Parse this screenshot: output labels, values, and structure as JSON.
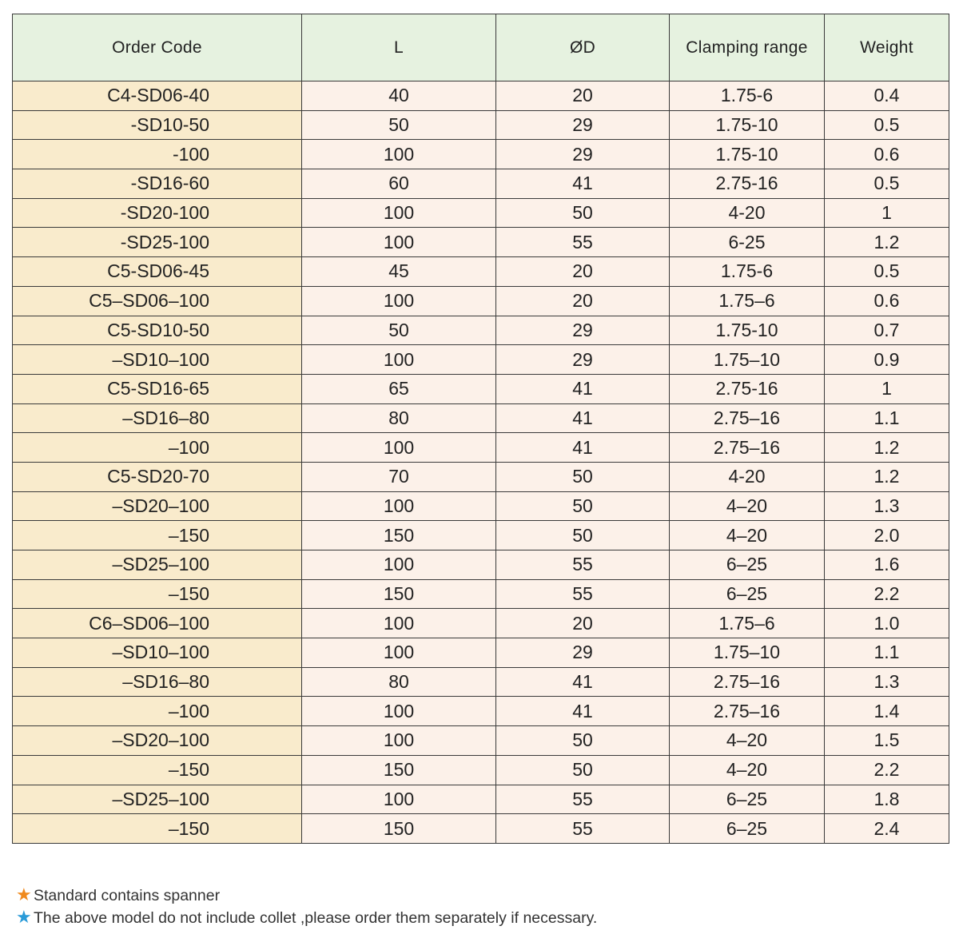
{
  "table": {
    "headers": [
      "Order Code",
      "L",
      "ØD",
      "Clamping range",
      "Weight"
    ],
    "rows": [
      [
        "C4-SD06-40",
        "40",
        "20",
        "1.75-6",
        "0.4"
      ],
      [
        "-SD10-50",
        "50",
        "29",
        "1.75-10",
        "0.5"
      ],
      [
        "-100",
        "100",
        "29",
        "1.75-10",
        "0.6"
      ],
      [
        "-SD16-60",
        "60",
        "41",
        "2.75-16",
        "0.5"
      ],
      [
        "-SD20-100",
        "100",
        "50",
        "4-20",
        "1"
      ],
      [
        "-SD25-100",
        "100",
        "55",
        "6-25",
        "1.2"
      ],
      [
        "C5-SD06-45",
        "45",
        "20",
        "1.75-6",
        "0.5"
      ],
      [
        "C5–SD06–100",
        "100",
        "20",
        "1.75–6",
        "0.6"
      ],
      [
        "C5-SD10-50",
        "50",
        "29",
        "1.75-10",
        "0.7"
      ],
      [
        "–SD10–100",
        "100",
        "29",
        "1.75–10",
        "0.9"
      ],
      [
        "C5-SD16-65",
        "65",
        "41",
        "2.75-16",
        "1"
      ],
      [
        "–SD16–80",
        "80",
        "41",
        "2.75–16",
        "1.1"
      ],
      [
        "–100",
        "100",
        "41",
        "2.75–16",
        "1.2"
      ],
      [
        "C5-SD20-70",
        "70",
        "50",
        "4-20",
        "1.2"
      ],
      [
        "–SD20–100",
        "100",
        "50",
        "4–20",
        "1.3"
      ],
      [
        "–150",
        "150",
        "50",
        "4–20",
        "2.0"
      ],
      [
        "–SD25–100",
        "100",
        "55",
        "6–25",
        "1.6"
      ],
      [
        "–150",
        "150",
        "55",
        "6–25",
        "2.2"
      ],
      [
        "C6–SD06–100",
        "100",
        "20",
        "1.75–6",
        "1.0"
      ],
      [
        "–SD10–100",
        "100",
        "29",
        "1.75–10",
        "1.1"
      ],
      [
        "–SD16–80",
        "80",
        "41",
        "2.75–16",
        "1.3"
      ],
      [
        "–100",
        "100",
        "41",
        "2.75–16",
        "1.4"
      ],
      [
        "–SD20–100",
        "100",
        "50",
        "4–20",
        "1.5"
      ],
      [
        "–150",
        "150",
        "50",
        "4–20",
        "2.2"
      ],
      [
        "–SD25–100",
        "100",
        "55",
        "6–25",
        "1.8"
      ],
      [
        "–150",
        "150",
        "55",
        "6–25",
        "2.4"
      ]
    ]
  },
  "notes": [
    {
      "icon": "orange-star-icon",
      "color": "#f08a1e",
      "text": "Standard contains spanner"
    },
    {
      "icon": "blue-star-icon",
      "color": "#2a9bd8",
      "text": "The above model do not include collet ,please order them separately if necessary."
    }
  ]
}
